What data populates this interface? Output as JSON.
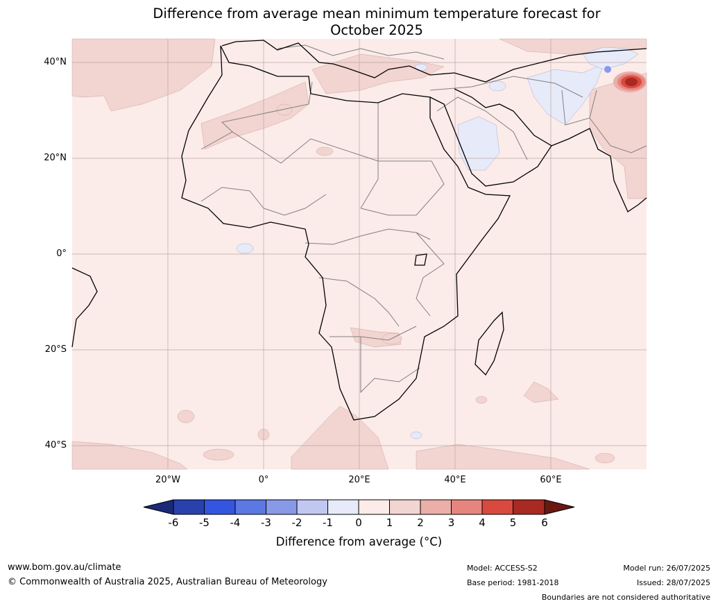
{
  "title_line1": "Difference from average mean minimum temperature forecast for",
  "title_line2": "October 2025",
  "lat_labels": [
    "40°N",
    "20°N",
    "0°",
    "20°S",
    "40°S"
  ],
  "lon_labels": [
    "20°W",
    "0°",
    "20°E",
    "40°E",
    "60°E"
  ],
  "colorbar": {
    "ticks": [
      "-6",
      "-5",
      "-4",
      "-3",
      "-2",
      "-1",
      "0",
      "1",
      "2",
      "3",
      "4",
      "5",
      "6"
    ],
    "label": "Difference from average (°C)",
    "colors": {
      "below_-6": "#1a2a78",
      "-6_-5": "#2941ad",
      "-5_-4": "#3355e0",
      "-4_-3": "#5c78e2",
      "-3_-2": "#8899e8",
      "-2_-1": "#c0c8f2",
      "-1_0": "#e7eaf9",
      "0_1": "#fbebe9",
      "1_2": "#f2d4d1",
      "2_3": "#ebaea9",
      "3_4": "#e6857e",
      "4_5": "#d9493f",
      "5_6": "#a82a22",
      "above_6": "#6b1712"
    }
  },
  "footer": {
    "website": "www.bom.gov.au/climate",
    "copyright": "© Commonwealth of Australia 2025, Australian Bureau of Meteorology",
    "model": "Model: ACCESS-S2",
    "base_period": "Base period: 1981-2018",
    "model_run": "Model run: 26/07/2025",
    "issued": "Issued: 28/07/2025",
    "disclaimer": "Boundaries are not considered authoritative"
  }
}
